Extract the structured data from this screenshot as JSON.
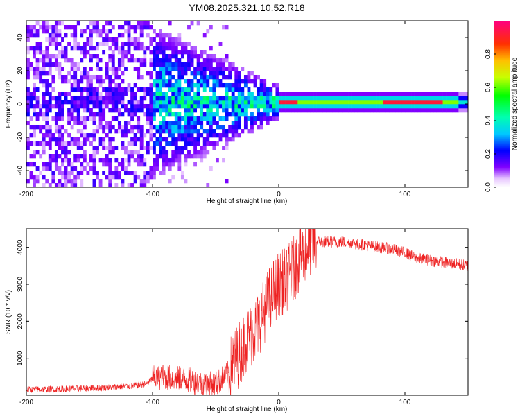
{
  "title": "YM08.2025.321.10.52.R18",
  "colors": {
    "snr_line": "#ee2222",
    "frame": "#000000",
    "background": "#ffffff"
  },
  "chart_data": [
    {
      "type": "heatmap",
      "name": "spectrogram",
      "xlabel": "Height of straight line (km)",
      "ylabel": "Frequency (Hz)",
      "xlim": [
        -200,
        150
      ],
      "ylim": [
        -50,
        50
      ],
      "xticks": [
        -200,
        -100,
        0,
        100
      ],
      "xtick_labels": [
        "-200",
        "-100",
        "0",
        "100"
      ],
      "yticks": [
        -40,
        -20,
        0,
        20,
        40
      ],
      "ytick_labels": [
        "-40",
        "-20",
        "0",
        "20",
        "40"
      ],
      "colorbar": {
        "label": "Normalized spectral amplitude",
        "range": [
          0,
          1
        ],
        "ticks": [
          0.0,
          0.2,
          0.4,
          0.6,
          0.8
        ],
        "tick_labels": [
          "0.0",
          "0.2",
          "0.4",
          "0.6",
          "0.8"
        ]
      },
      "description_of_pattern": {
        "noise_region_km": [
          -200,
          -100
        ],
        "transition_region_km": [
          -100,
          0
        ],
        "tone_region_km": [
          0,
          150
        ],
        "tone_frequency_hz": 1,
        "tone_peak_km": [
          0,
          110
        ]
      }
    },
    {
      "type": "line",
      "name": "snr",
      "xlabel": "Height of straight line (km)",
      "ylabel": "SNR (10 * v/v)",
      "xlim": [
        -200,
        150
      ],
      "ylim": [
        0,
        4500
      ],
      "xticks": [
        -200,
        -100,
        0,
        100
      ],
      "xtick_labels": [
        "-200",
        "-100",
        "0",
        "100"
      ],
      "yticks": [
        1000,
        2000,
        3000,
        4000
      ],
      "ytick_labels": [
        "1000",
        "2000",
        "3000",
        "4000"
      ],
      "series": [
        {
          "name": "SNR",
          "x": [
            -200,
            -180,
            -160,
            -140,
            -120,
            -105,
            -100,
            -90,
            -80,
            -70,
            -60,
            -50,
            -40,
            -35,
            -30,
            -25,
            -20,
            -15,
            -10,
            -5,
            0,
            5,
            10,
            15,
            20,
            25,
            30,
            40,
            50,
            60,
            70,
            80,
            90,
            100,
            110,
            120,
            130,
            140,
            150
          ],
          "values": [
            150,
            160,
            180,
            200,
            240,
            300,
            450,
            500,
            450,
            400,
            300,
            300,
            600,
            900,
            1200,
            1500,
            1700,
            2000,
            2400,
            2800,
            3000,
            3100,
            3300,
            3600,
            3900,
            4100,
            4150,
            4150,
            4150,
            4100,
            4050,
            4000,
            3950,
            3850,
            3700,
            3650,
            3600,
            3550,
            3500
          ]
        }
      ]
    }
  ]
}
